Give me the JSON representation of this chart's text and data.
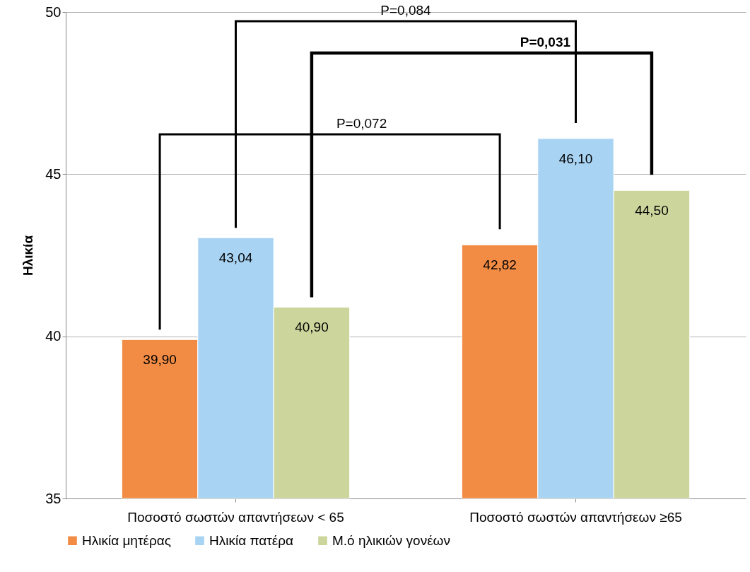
{
  "chart_data": {
    "type": "bar",
    "ylabel": "Ηλικία",
    "categories": [
      "Ποσοστό σωστών απαντήσεων < 65",
      "Ποσοστό σωστών απαντήσεων ≥65"
    ],
    "series": [
      {
        "name": "Ηλικία μητέρας",
        "color": "#f28c45",
        "values": [
          39.9,
          42.82
        ],
        "value_labels": [
          "39,90",
          "42,82"
        ]
      },
      {
        "name": "Ηλικία πατέρα",
        "color": "#a8d3f3",
        "values": [
          43.04,
          46.1
        ],
        "value_labels": [
          "43,04",
          "46,10"
        ]
      },
      {
        "name": "Μ.ό ηλικιών γονέων",
        "color": "#ccd59b",
        "values": [
          40.9,
          44.5
        ],
        "value_labels": [
          "40,90",
          "44,50"
        ]
      }
    ],
    "ylim": [
      35,
      50
    ],
    "yticks": [
      35,
      40,
      45,
      50
    ],
    "grid": "y",
    "legend": "bottom",
    "annotations": [
      "P=0,084",
      "P=0,031",
      "P=0,072"
    ]
  }
}
